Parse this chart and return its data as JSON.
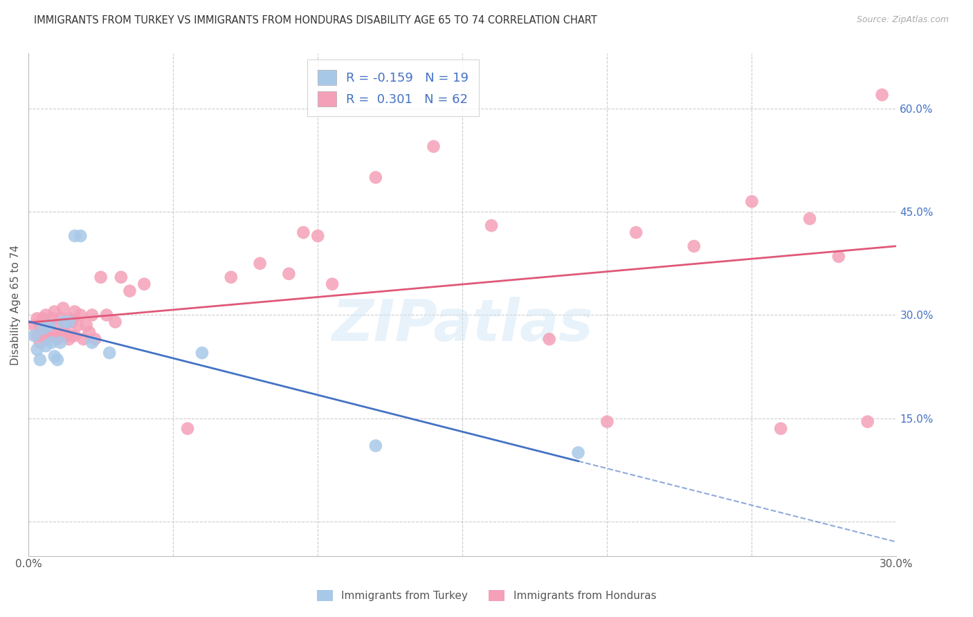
{
  "title": "IMMIGRANTS FROM TURKEY VS IMMIGRANTS FROM HONDURAS DISABILITY AGE 65 TO 74 CORRELATION CHART",
  "source": "Source: ZipAtlas.com",
  "ylabel": "Disability Age 65 to 74",
  "xlim": [
    0.0,
    0.3
  ],
  "ylim": [
    -0.05,
    0.68
  ],
  "turkey_color": "#a8c8e8",
  "honduras_color": "#f4a0b8",
  "turkey_line_color": "#4472c4",
  "honduras_line_color": "#e05878",
  "turkey_R": -0.159,
  "turkey_N": 19,
  "honduras_R": 0.301,
  "honduras_N": 62,
  "right_y_ticks": [
    0.15,
    0.3,
    0.45,
    0.6
  ],
  "right_y_tick_labels": [
    "15.0%",
    "30.0%",
    "45.0%",
    "60.0%"
  ],
  "turkey_x": [
    0.002,
    0.003,
    0.004,
    0.005,
    0.006,
    0.007,
    0.008,
    0.009,
    0.01,
    0.011,
    0.012,
    0.014,
    0.016,
    0.018,
    0.022,
    0.028,
    0.06,
    0.12,
    0.19
  ],
  "turkey_y": [
    0.27,
    0.25,
    0.235,
    0.28,
    0.255,
    0.285,
    0.26,
    0.24,
    0.235,
    0.26,
    0.29,
    0.29,
    0.415,
    0.415,
    0.26,
    0.245,
    0.245,
    0.11,
    0.1
  ],
  "honduras_x": [
    0.002,
    0.003,
    0.003,
    0.004,
    0.004,
    0.005,
    0.005,
    0.006,
    0.006,
    0.007,
    0.007,
    0.008,
    0.008,
    0.009,
    0.009,
    0.01,
    0.01,
    0.011,
    0.011,
    0.012,
    0.012,
    0.013,
    0.013,
    0.014,
    0.014,
    0.015,
    0.015,
    0.016,
    0.016,
    0.017,
    0.018,
    0.019,
    0.02,
    0.021,
    0.022,
    0.023,
    0.025,
    0.027,
    0.03,
    0.032,
    0.035,
    0.04,
    0.055,
    0.07,
    0.08,
    0.09,
    0.095,
    0.1,
    0.105,
    0.12,
    0.14,
    0.16,
    0.18,
    0.2,
    0.21,
    0.23,
    0.25,
    0.26,
    0.27,
    0.28,
    0.29,
    0.295
  ],
  "honduras_y": [
    0.285,
    0.295,
    0.27,
    0.285,
    0.26,
    0.295,
    0.275,
    0.3,
    0.265,
    0.285,
    0.27,
    0.295,
    0.275,
    0.305,
    0.27,
    0.285,
    0.265,
    0.295,
    0.27,
    0.31,
    0.275,
    0.285,
    0.27,
    0.295,
    0.265,
    0.29,
    0.27,
    0.305,
    0.27,
    0.285,
    0.3,
    0.265,
    0.285,
    0.275,
    0.3,
    0.265,
    0.355,
    0.3,
    0.29,
    0.355,
    0.335,
    0.345,
    0.135,
    0.355,
    0.375,
    0.36,
    0.42,
    0.415,
    0.345,
    0.5,
    0.545,
    0.43,
    0.265,
    0.145,
    0.42,
    0.4,
    0.465,
    0.135,
    0.44,
    0.385,
    0.145,
    0.62
  ]
}
